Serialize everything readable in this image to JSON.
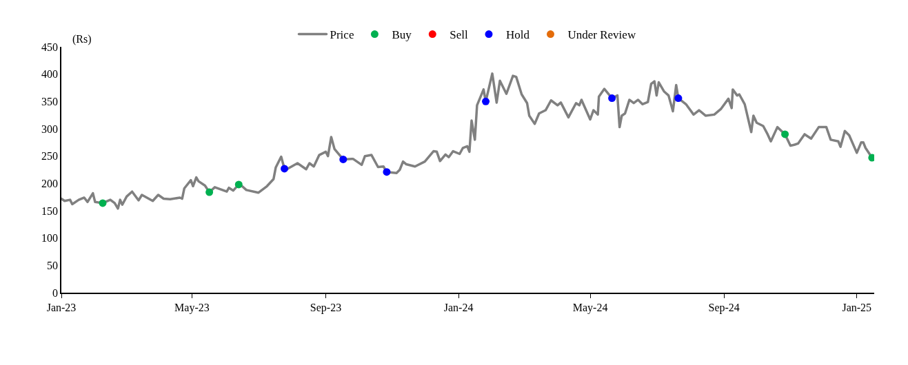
{
  "chart_data": {
    "type": "line",
    "ylabel": "(Rs)",
    "legend": "top",
    "xlim": [
      "2023-01-01",
      "2025-01-17"
    ],
    "xticks": [
      {
        "value": "2023-01-01",
        "label": "Jan-23"
      },
      {
        "value": "2023-05-01",
        "label": "May-23"
      },
      {
        "value": "2023-09-01",
        "label": "Sep-23"
      },
      {
        "value": "2024-01-01",
        "label": "Jan-24"
      },
      {
        "value": "2024-05-01",
        "label": "May-24"
      },
      {
        "value": "2024-09-01",
        "label": "Sep-24"
      },
      {
        "value": "2025-01-01",
        "label": "Jan-25"
      }
    ],
    "ylim": [
      0,
      450
    ],
    "yticks": [
      0,
      50,
      100,
      150,
      200,
      250,
      300,
      350,
      400,
      450
    ],
    "series": [
      {
        "name": "Price",
        "color": "#808080",
        "marker": "none",
        "line_style": "solid",
        "x": [
          "2023-01-01",
          "2023-01-04",
          "2023-01-09",
          "2023-01-11",
          "2023-01-17",
          "2023-01-22",
          "2023-01-25",
          "2023-01-30",
          "2023-02-01",
          "2023-02-08",
          "2023-02-15",
          "2023-02-19",
          "2023-02-22",
          "2023-02-24",
          "2023-02-26",
          "2023-03-02",
          "2023-03-07",
          "2023-03-13",
          "2023-03-16",
          "2023-03-26",
          "2023-03-31",
          "2023-04-05",
          "2023-04-11",
          "2023-04-20",
          "2023-04-22",
          "2023-04-24",
          "2023-04-30",
          "2023-05-02",
          "2023-05-05",
          "2023-05-07",
          "2023-05-13",
          "2023-05-17",
          "2023-05-22",
          "2023-06-02",
          "2023-06-04",
          "2023-06-08",
          "2023-06-13",
          "2023-06-16",
          "2023-06-20",
          "2023-07-01",
          "2023-07-05",
          "2023-07-09",
          "2023-07-15",
          "2023-07-17",
          "2023-07-22",
          "2023-07-25",
          "2023-07-28",
          "2023-08-06",
          "2023-08-14",
          "2023-08-17",
          "2023-08-21",
          "2023-08-26",
          "2023-09-01",
          "2023-09-03",
          "2023-09-06",
          "2023-09-09",
          "2023-09-17",
          "2023-09-26",
          "2023-10-04",
          "2023-10-07",
          "2023-10-13",
          "2023-10-19",
          "2023-10-24",
          "2023-10-27",
          "2023-11-05",
          "2023-11-08",
          "2023-11-11",
          "2023-11-14",
          "2023-11-22",
          "2023-12-01",
          "2023-12-09",
          "2023-12-12",
          "2023-12-15",
          "2023-12-20",
          "2023-12-23",
          "2023-12-27",
          "2024-01-02",
          "2024-01-05",
          "2024-01-09",
          "2024-01-11",
          "2024-01-13",
          "2024-01-16",
          "2024-01-18",
          "2024-01-24",
          "2024-01-26",
          "2024-02-01",
          "2024-02-05",
          "2024-02-08",
          "2024-02-14",
          "2024-02-20",
          "2024-02-23",
          "2024-02-28",
          "2024-03-04",
          "2024-03-06",
          "2024-03-11",
          "2024-03-15",
          "2024-03-21",
          "2024-03-26",
          "2024-04-01",
          "2024-04-04",
          "2024-04-11",
          "2024-04-18",
          "2024-04-21",
          "2024-04-23",
          "2024-05-01",
          "2024-05-04",
          "2024-05-08",
          "2024-05-09",
          "2024-05-14",
          "2024-05-21",
          "2024-05-24",
          "2024-05-26",
          "2024-05-28",
          "2024-05-30",
          "2024-06-02",
          "2024-06-06",
          "2024-06-10",
          "2024-06-14",
          "2024-06-18",
          "2024-06-23",
          "2024-06-26",
          "2024-06-29",
          "2024-07-01",
          "2024-07-03",
          "2024-07-08",
          "2024-07-12",
          "2024-07-16",
          "2024-07-19",
          "2024-07-21",
          "2024-07-28",
          "2024-08-04",
          "2024-08-09",
          "2024-08-15",
          "2024-08-23",
          "2024-08-29",
          "2024-09-05",
          "2024-09-08",
          "2024-09-09",
          "2024-09-13",
          "2024-09-15",
          "2024-09-20",
          "2024-09-26",
          "2024-09-28",
          "2024-10-01",
          "2024-10-07",
          "2024-10-11",
          "2024-10-14",
          "2024-10-20",
          "2024-10-27",
          "2024-11-01",
          "2024-11-05",
          "2024-11-08",
          "2024-11-14",
          "2024-11-20",
          "2024-11-27",
          "2024-12-04",
          "2024-12-08",
          "2024-12-15",
          "2024-12-17",
          "2024-12-21",
          "2024-12-25",
          "2025-01-01",
          "2025-01-05",
          "2025-01-07",
          "2025-01-09",
          "2025-01-15"
        ],
        "values": [
          172,
          168,
          170,
          162,
          170,
          174,
          166,
          182,
          166,
          164,
          170,
          164,
          154,
          170,
          161,
          176,
          185,
          169,
          179,
          168,
          179,
          172,
          171,
          174,
          172,
          191,
          206,
          195,
          211,
          204,
          196,
          184,
          193,
          185,
          192,
          187,
          198,
          195,
          188,
          183,
          189,
          195,
          208,
          229,
          249,
          227,
          227,
          237,
          226,
          237,
          231,
          252,
          258,
          250,
          285,
          263,
          244,
          245,
          234,
          250,
          252,
          230,
          231,
          221,
          219,
          225,
          240,
          235,
          231,
          240,
          259,
          258,
          241,
          253,
          248,
          259,
          254,
          265,
          268,
          258,
          315,
          280,
          343,
          372,
          350,
          401,
          348,
          388,
          364,
          397,
          395,
          363,
          347,
          324,
          309,
          328,
          334,
          352,
          343,
          348,
          321,
          347,
          343,
          353,
          317,
          334,
          326,
          359,
          373,
          356,
          359,
          361,
          303,
          324,
          328,
          353,
          347,
          353,
          345,
          349,
          382,
          387,
          361,
          385,
          368,
          361,
          332,
          380,
          356,
          345,
          326,
          334,
          324,
          326,
          336,
          355,
          338,
          372,
          361,
          363,
          345,
          294,
          324,
          311,
          305,
          290,
          277,
          303,
          290,
          269,
          271,
          273,
          290,
          282,
          303,
          303,
          280,
          277,
          267,
          296,
          288,
          256,
          275,
          275,
          265,
          247
        ]
      },
      {
        "name": "Buy",
        "type": "scatter",
        "color": "#00b050",
        "marker": "circle",
        "x": [
          "2023-02-08",
          "2023-05-17",
          "2023-06-13",
          "2024-10-27",
          "2025-01-15"
        ],
        "values": [
          164,
          184,
          198,
          290,
          247
        ]
      },
      {
        "name": "Sell",
        "type": "scatter",
        "color": "#ff0000",
        "marker": "circle"
      },
      {
        "name": "Hold",
        "type": "scatter",
        "color": "#0000ff",
        "marker": "circle",
        "x": [
          "2023-07-25",
          "2023-09-17",
          "2023-10-27",
          "2024-01-26",
          "2024-05-21",
          "2024-07-21"
        ],
        "values": [
          227,
          244,
          221,
          350,
          356,
          356
        ]
      },
      {
        "name": "Under Review",
        "type": "scatter",
        "color": "#e46c0a",
        "marker": "circle"
      }
    ]
  }
}
